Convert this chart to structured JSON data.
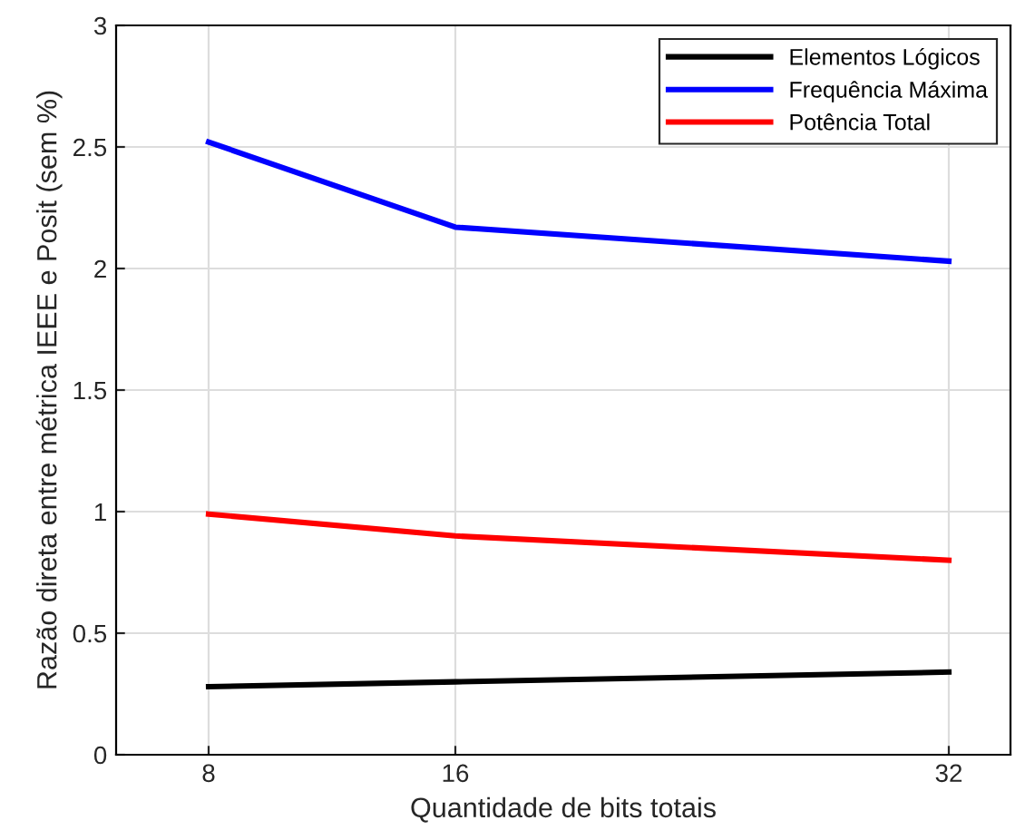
{
  "chart_data": {
    "type": "line",
    "xlabel": "Quantidade de bits totais",
    "ylabel": "Razão direta entre métrica IEEE e Posit (sem %)",
    "x": [
      8,
      16,
      32
    ],
    "series": [
      {
        "name": "Elementos Lógicos",
        "color": "#000000",
        "values": [
          0.28,
          0.3,
          0.34
        ]
      },
      {
        "name": "Frequência Máxima",
        "color": "#0000ff",
        "values": [
          2.52,
          2.17,
          2.03
        ]
      },
      {
        "name": "Potência Total",
        "color": "#ff0000",
        "values": [
          0.99,
          0.9,
          0.8
        ]
      }
    ],
    "xlim": [
      5,
      34
    ],
    "xticks": [
      8,
      16,
      32
    ],
    "ylim": [
      0,
      3
    ],
    "yticks": [
      0,
      0.5,
      1,
      1.5,
      2,
      2.5,
      3
    ],
    "grid": true,
    "legend": "top right",
    "line_style": "solid",
    "marker": "none"
  }
}
